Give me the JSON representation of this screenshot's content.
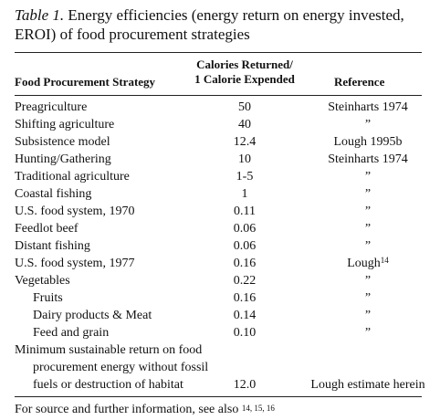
{
  "caption": {
    "label": "Table 1.",
    "text": "Energy efficiencies (energy return on energy invested, EROI) of food procurement strategies"
  },
  "headers": {
    "strategy": "Food Procurement Strategy",
    "calories_line1": "Calories Returned/",
    "calories_line2": "1 Calorie Expended",
    "reference": "Reference"
  },
  "rows": [
    {
      "name": "Preagriculture",
      "value": "50",
      "reference": "Steinharts 1974",
      "ref_sup": ""
    },
    {
      "name": "Shifting agriculture",
      "value": "40",
      "reference": "”",
      "ref_sup": ""
    },
    {
      "name": "Subsistence model",
      "value": "12.4",
      "reference": "Lough 1995b",
      "ref_sup": ""
    },
    {
      "name": "Hunting/Gathering",
      "value": "10",
      "reference": "Steinharts 1974",
      "ref_sup": ""
    },
    {
      "name": "Traditional agriculture",
      "value": "1-5",
      "reference": "”",
      "ref_sup": ""
    },
    {
      "name": "Coastal fishing",
      "value": "1",
      "reference": "”",
      "ref_sup": ""
    },
    {
      "name": "U.S. food system, 1970",
      "value": "0.11",
      "reference": "”",
      "ref_sup": ""
    },
    {
      "name": "Feedlot beef",
      "value": "0.06",
      "reference": "”",
      "ref_sup": ""
    },
    {
      "name": "Distant fishing",
      "value": "0.06",
      "reference": "”",
      "ref_sup": ""
    },
    {
      "name": "U.S. food system, 1977",
      "value": "0.16",
      "reference": "Lough",
      "ref_sup": "14"
    },
    {
      "name": "Vegetables",
      "value": "0.22",
      "reference": "”",
      "ref_sup": ""
    },
    {
      "name": "Fruits",
      "value": "0.16",
      "reference": "”",
      "ref_sup": ""
    },
    {
      "name": "Dairy products & Meat",
      "value": "0.14",
      "reference": "”",
      "ref_sup": ""
    },
    {
      "name": "Feed and grain",
      "value": "0.10",
      "reference": "”",
      "ref_sup": ""
    }
  ],
  "last_row": {
    "line1": "Minimum sustainable return on food",
    "line2": "procurement energy without fossil",
    "line3": "fuels or destruction of habitat",
    "value": "12.0",
    "reference": "Lough estimate herein"
  },
  "footnote": {
    "text": "For source and further information, see also ",
    "sup": "14, 15, 16"
  }
}
